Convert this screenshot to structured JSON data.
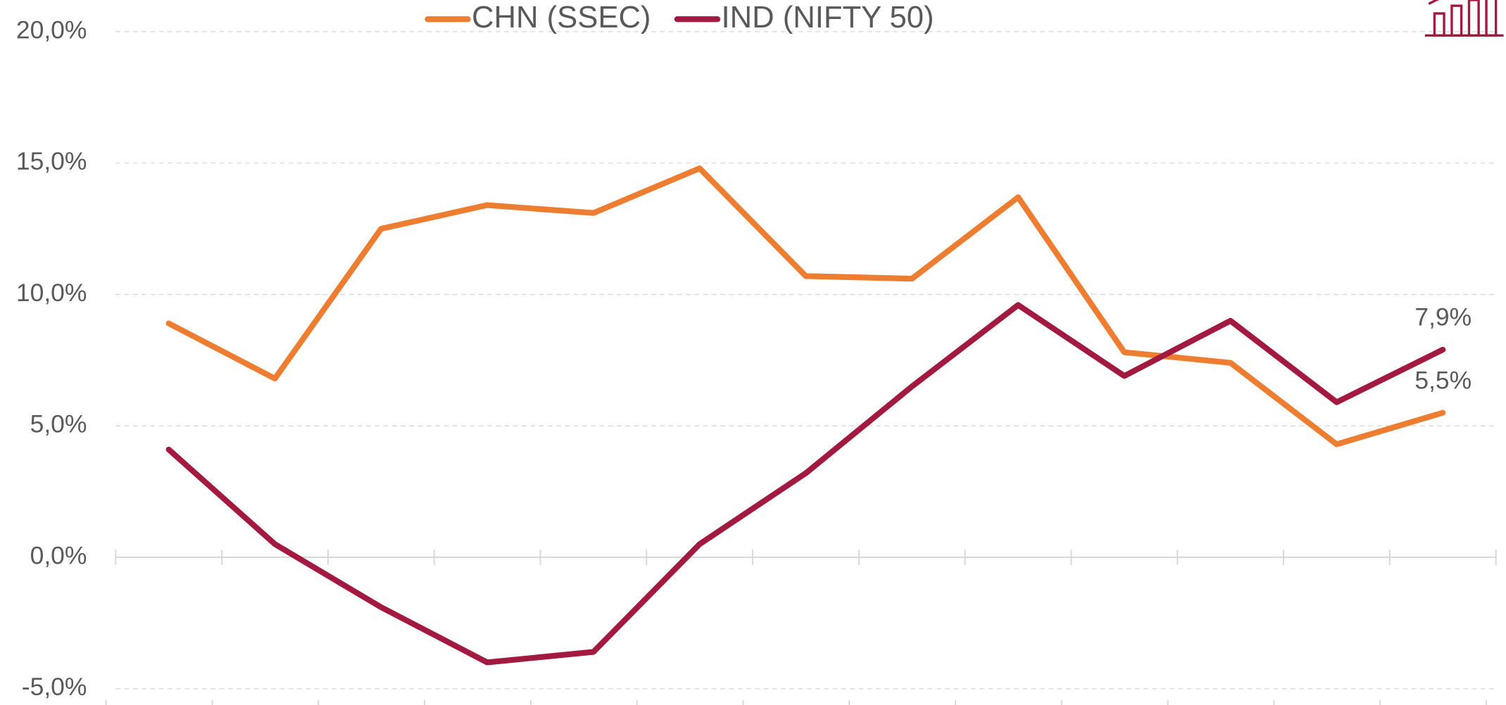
{
  "chart_data": {
    "type": "line",
    "categories": [
      null,
      null,
      null,
      null,
      null,
      null,
      null,
      null,
      null,
      null,
      null,
      null,
      null
    ],
    "series": [
      {
        "name": "CHN (SSEC)",
        "color": "#ed7d31",
        "values": [
          8.9,
          6.8,
          12.5,
          13.4,
          13.1,
          14.8,
          10.7,
          10.6,
          13.7,
          7.8,
          7.4,
          4.3,
          5.5
        ],
        "value_labels": [
          null,
          null,
          null,
          null,
          null,
          null,
          null,
          null,
          null,
          null,
          null,
          null,
          "5,5%"
        ]
      },
      {
        "name": "IND (NIFTY 50)",
        "color": "#a31a41",
        "values": [
          4.1,
          0.5,
          -1.9,
          -4.0,
          -3.6,
          0.5,
          3.2,
          6.5,
          9.6,
          6.9,
          9.0,
          5.9,
          7.9
        ],
        "value_labels": [
          null,
          null,
          null,
          null,
          null,
          null,
          null,
          null,
          null,
          null,
          null,
          null,
          "7,9%"
        ]
      }
    ],
    "ylim": [
      -5,
      20
    ],
    "yticks": [
      {
        "value": -5,
        "label": "-5,0%"
      },
      {
        "value": 0,
        "label": "0,0%"
      },
      {
        "value": 5,
        "label": "5,0%"
      },
      {
        "value": 10,
        "label": "10,0%"
      },
      {
        "value": 15,
        "label": "15,0%"
      },
      {
        "value": 20,
        "label": "20,0%"
      }
    ],
    "grid": true,
    "legend": "top"
  }
}
